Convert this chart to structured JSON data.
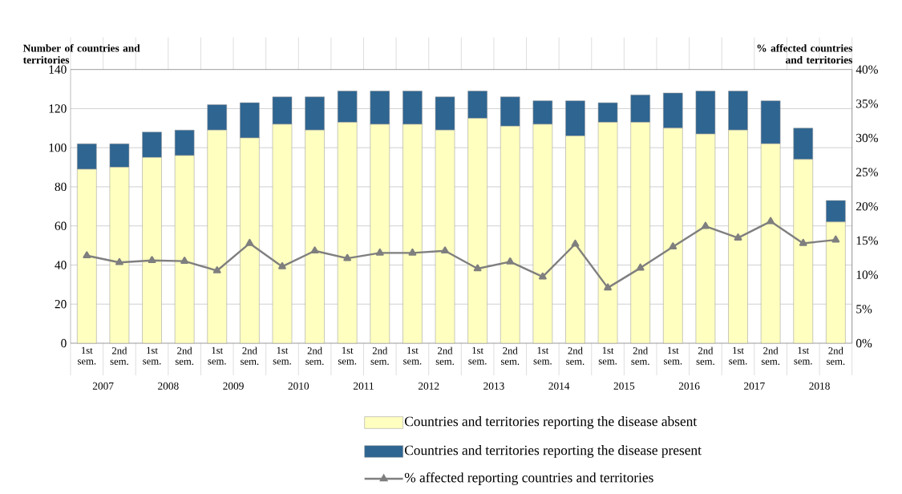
{
  "chart_data": {
    "type": "bar",
    "stacked": true,
    "ylabel": "Number of countries and territories",
    "y2label": "% affected countries and territories",
    "categories": [
      "1st sem.",
      "2nd sem.",
      "1st sem.",
      "2nd sem.",
      "1st sem.",
      "2nd sem.",
      "1st sem.",
      "2nd sem.",
      "1st sem.",
      "2nd sem.",
      "1st sem.",
      "2nd sem.",
      "1st sem.",
      "2nd sem.",
      "1st sem.",
      "2nd sem.",
      "1st sem.",
      "2nd sem.",
      "1st sem.",
      "2nd sem.",
      "1st sem.",
      "2nd sem.",
      "1st sem.",
      "2nd sem."
    ],
    "annotations": [
      "2007",
      "2008",
      "2009",
      "2010",
      "2011",
      "2012",
      "2013",
      "2014",
      "2015",
      "2016",
      "2017",
      "2018"
    ],
    "series": [
      {
        "name": "Countries and territories reporting the disease absent",
        "type": "bar",
        "color": "#ffffc0",
        "values": [
          89,
          90,
          95,
          96,
          109,
          105,
          112,
          109,
          113,
          112,
          112,
          109,
          115,
          111,
          112,
          106,
          113,
          113,
          110,
          107,
          109,
          102,
          94,
          62
        ]
      },
      {
        "name": "Countries and territories reporting the disease present",
        "type": "bar",
        "color": "#2e6591",
        "values": [
          13,
          12,
          13,
          13,
          13,
          18,
          14,
          17,
          16,
          17,
          17,
          17,
          14,
          15,
          12,
          18,
          10,
          14,
          18,
          22,
          20,
          22,
          16,
          11
        ]
      },
      {
        "name": "% affected reporting countries and territories",
        "type": "line",
        "axis": "y2",
        "color": "#7f7f7f",
        "values": [
          12.8,
          11.8,
          12.1,
          12.0,
          10.6,
          14.6,
          11.2,
          13.5,
          12.4,
          13.2,
          13.2,
          13.5,
          10.9,
          11.9,
          9.7,
          14.5,
          8.1,
          11.0,
          14.1,
          17.1,
          15.4,
          17.8,
          14.6,
          15.1
        ]
      }
    ],
    "ylim": [
      0,
      140
    ],
    "yticks": [
      0,
      20,
      40,
      60,
      80,
      100,
      120,
      140
    ],
    "y2lim": [
      0,
      40
    ],
    "y2ticks": [
      {
        "value": 0,
        "label": "0%"
      },
      {
        "value": 5,
        "label": "5%"
      },
      {
        "value": 10,
        "label": "10%"
      },
      {
        "value": 15,
        "label": "15%"
      },
      {
        "value": 20,
        "label": "20%"
      },
      {
        "value": 25,
        "label": "25%"
      },
      {
        "value": 30,
        "label": "30%"
      },
      {
        "value": 35,
        "label": "35%"
      },
      {
        "value": 40,
        "label": "40%"
      }
    ],
    "grid": "y",
    "legend": "bottom",
    "marker": "triangle",
    "line_style": "solid"
  }
}
